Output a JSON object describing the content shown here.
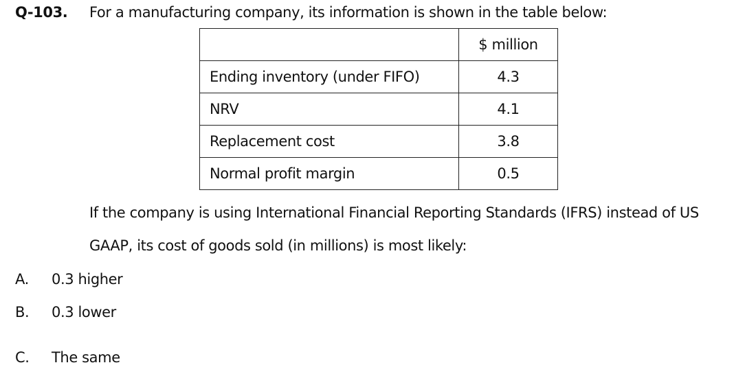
{
  "question": {
    "number": "Q-103.",
    "intro": "For a manufacturing company, its information is shown in the table below:",
    "table": {
      "header": [
        "",
        "$ million"
      ],
      "rows": [
        [
          "Ending inventory (under FIFO)",
          "4.3"
        ],
        [
          "NRV",
          "4.1"
        ],
        [
          "Replacement cost",
          "3.8"
        ],
        [
          "Normal profit margin",
          "0.5"
        ]
      ]
    },
    "text_lines": [
      "If the company is using International Financial Reporting Standards (IFRS) instead of US",
      "GAAP, its cost of goods sold (in millions) is most likely:"
    ],
    "options": [
      {
        "letter": "A.",
        "text": "0.3 higher"
      },
      {
        "letter": "B.",
        "text": "0.3 lower"
      },
      {
        "letter": "C.",
        "text": "The same"
      }
    ]
  }
}
